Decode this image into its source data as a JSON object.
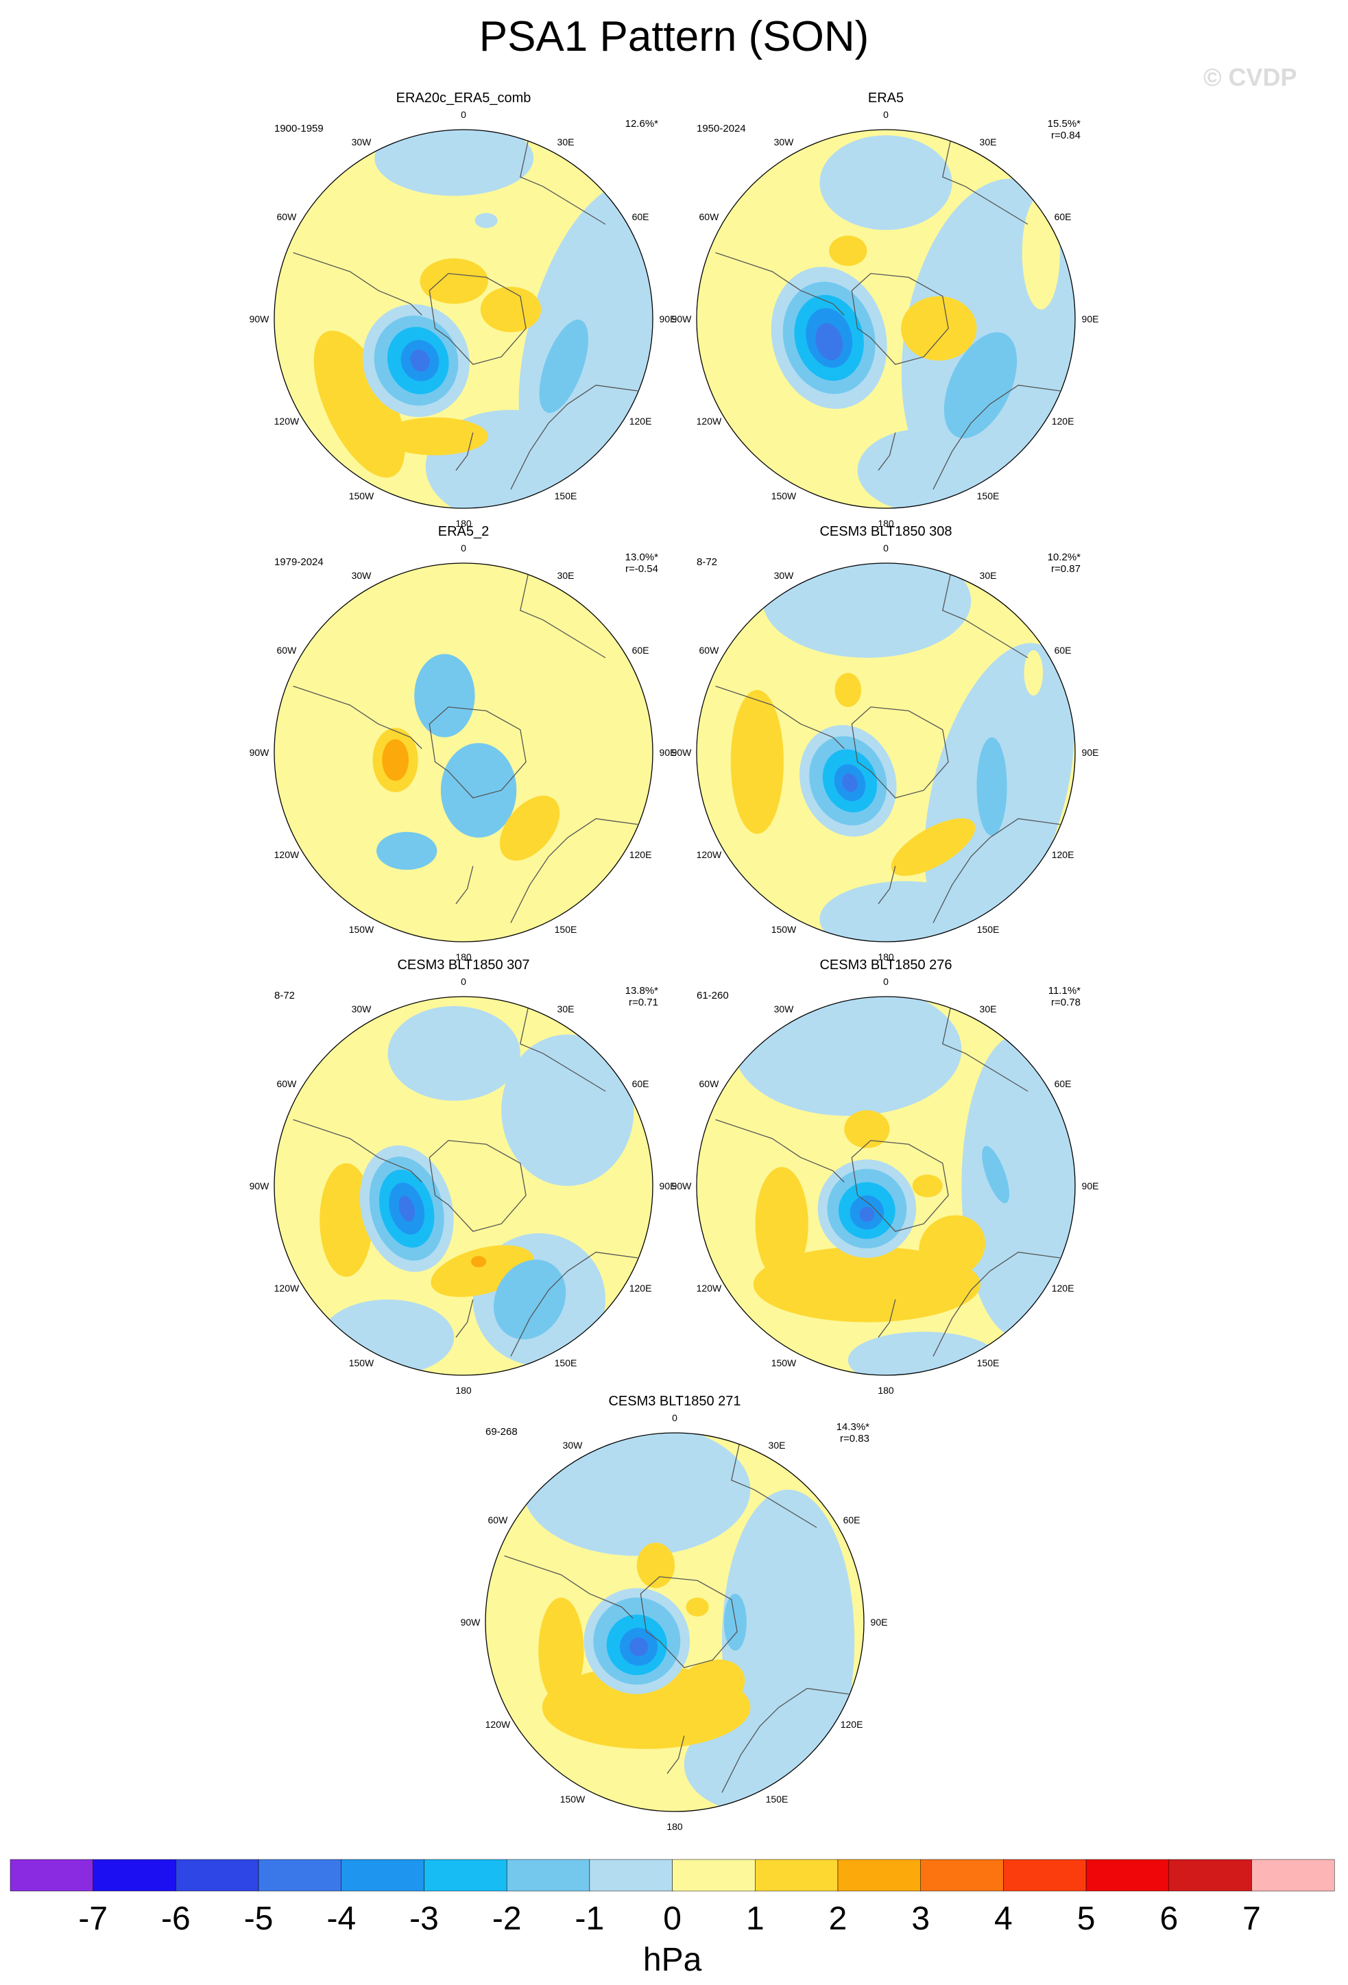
{
  "title": "PSA1 Pattern (SON)",
  "watermark": "© CVDP",
  "colors": {
    "n7": "#8a2be2",
    "n6": "#1c10f2",
    "n5": "#2e46e6",
    "n4": "#3a78ea",
    "n3": "#1e96f0",
    "n2": "#18bcf4",
    "n1": "#74c8ee",
    "n0": "#b3dcf1",
    "p0": "#fdf89a",
    "p1": "#fdd831",
    "p2": "#fca90c",
    "p3": "#fb7410",
    "p4": "#fb3d0e",
    "p5": "#ef0608",
    "p6": "#d21a1a",
    "p7": "#feb5b5"
  },
  "panels": [
    {
      "name": "ERA20c_ERA5_comb",
      "years": "1900-1959",
      "pct": "12.6%*",
      "r": ""
    },
    {
      "name": "ERA5",
      "years": "1950-2024",
      "pct": "15.5%*",
      "r": "r=0.84"
    },
    {
      "name": "ERA5_2",
      "years": "1979-2024",
      "pct": "13.0%*",
      "r": "r=-0.54"
    },
    {
      "name": "CESM3 BLT1850 308",
      "years": "8-72",
      "pct": "10.2%*",
      "r": "r=0.87"
    },
    {
      "name": "CESM3 BLT1850 307",
      "years": "8-72",
      "pct": "13.8%*",
      "r": "r=0.71"
    },
    {
      "name": "CESM3 BLT1850 276",
      "years": "61-260",
      "pct": "11.1%*",
      "r": "r=0.78"
    },
    {
      "name": "CESM3 BLT1850 271",
      "years": "69-268",
      "pct": "14.3%*",
      "r": "r=0.83"
    }
  ],
  "lon_labels": [
    "0",
    "30E",
    "60E",
    "90E",
    "120E",
    "150E",
    "180",
    "150W",
    "120W",
    "90W",
    "60W",
    "30W"
  ],
  "colorbar": {
    "ticks": [
      "-7",
      "-6",
      "-5",
      "-4",
      "-3",
      "-2",
      "-1",
      "0",
      "1",
      "2",
      "3",
      "4",
      "5",
      "6",
      "7"
    ],
    "units": "hPa"
  }
}
